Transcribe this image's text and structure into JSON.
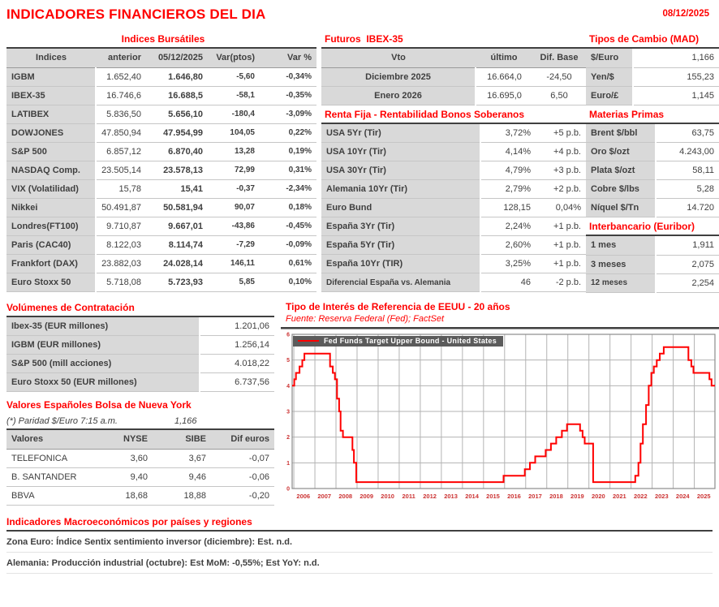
{
  "header": {
    "title": "INDICADORES FINANCIEROS DEL DIA",
    "date": "08/12/2025"
  },
  "indices": {
    "title": "Indices Bursátiles",
    "columns": [
      "Indices",
      "anterior",
      "05/12/2025",
      "Var(ptos)",
      "Var %"
    ],
    "rows": [
      [
        "IGBM",
        "1.652,40",
        "1.646,80",
        "-5,60",
        "-0,34%"
      ],
      [
        "IBEX-35",
        "16.746,6",
        "16.688,5",
        "-58,1",
        "-0,35%"
      ],
      [
        "LATIBEX",
        "5.836,50",
        "5.656,10",
        "-180,4",
        "-3,09%"
      ],
      [
        "DOWJONES",
        "47.850,94",
        "47.954,99",
        "104,05",
        "0,22%"
      ],
      [
        "S&P 500",
        "6.857,12",
        "6.870,40",
        "13,28",
        "0,19%"
      ],
      [
        "NASDAQ Comp.",
        "23.505,14",
        "23.578,13",
        "72,99",
        "0,31%"
      ],
      [
        "VIX (Volatilidad)",
        "15,78",
        "15,41",
        "-0,37",
        "-2,34%"
      ],
      [
        "Nikkei",
        "50.491,87",
        "50.581,94",
        "90,07",
        "0,18%"
      ],
      [
        "Londres(FT100)",
        "9.710,87",
        "9.667,01",
        "-43,86",
        "-0,45%"
      ],
      [
        "Paris (CAC40)",
        "8.122,03",
        "8.114,74",
        "-7,29",
        "-0,09%"
      ],
      [
        "Frankfort (DAX)",
        "23.882,03",
        "24.028,14",
        "146,11",
        "0,61%"
      ],
      [
        "Euro Stoxx 50",
        "5.718,08",
        "5.723,93",
        "5,85",
        "0,10%"
      ]
    ]
  },
  "futuros": {
    "title": "Futuros  IBEX-35",
    "columns": [
      "Vto",
      "último",
      "Dif. Base"
    ],
    "rows": [
      [
        "Diciembre 2025",
        "16.664,0",
        "-24,50"
      ],
      [
        "Enero 2026",
        "16.695,0",
        "6,50"
      ]
    ]
  },
  "renta_fija": {
    "title": "Renta Fija - Rentabilidad Bonos Soberanos",
    "rows": [
      [
        "USA 5Yr (Tir)",
        "3,72%",
        "+5 p.b."
      ],
      [
        "USA 10Yr (Tir)",
        "4,14%",
        "+4 p.b."
      ],
      [
        "USA 30Yr (Tir)",
        "4,79%",
        "+3 p.b."
      ],
      [
        "Alemania 10Yr (Tir)",
        "2,79%",
        "+2 p.b."
      ],
      [
        "Euro Bund",
        "128,15",
        "0,04%"
      ],
      [
        "España 3Yr (Tir)",
        "2,24%",
        "+1 p.b."
      ],
      [
        "España 5Yr (Tir)",
        "2,60%",
        "+1 p.b."
      ],
      [
        "España 10Yr (TIR)",
        "3,25%",
        "+1 p.b."
      ],
      [
        "Diferencial España vs. Alemania",
        "46",
        "-2 p.b."
      ]
    ]
  },
  "tipos_cambio": {
    "title": "Tipos de Cambio (MAD)",
    "rows": [
      [
        "$/Euro",
        "1,166"
      ],
      [
        "Yen/$",
        "155,23"
      ],
      [
        "Euro/£",
        "1,145"
      ]
    ]
  },
  "materias_primas": {
    "title": "Materias Primas",
    "rows": [
      [
        "Brent $/bbl",
        "63,75"
      ],
      [
        "Oro $/ozt",
        "4.243,00"
      ],
      [
        "Plata $/ozt",
        "58,11"
      ],
      [
        "Cobre $/lbs",
        "5,28"
      ],
      [
        "Níquel $/Tn",
        "14.720"
      ]
    ]
  },
  "interbancario": {
    "title": "Interbancario (Euribor)",
    "rows": [
      [
        "1 mes",
        "1,911"
      ],
      [
        "3 meses",
        "2,075"
      ],
      [
        "12 meses",
        "2,254"
      ]
    ]
  },
  "volumenes": {
    "title": "Volúmenes de Contratación",
    "rows": [
      [
        "Ibex-35 (EUR millones)",
        "1.201,06"
      ],
      [
        "IGBM (EUR millones)",
        "1.256,14"
      ],
      [
        "S&P 500 (mill acciones)",
        "4.018,22"
      ],
      [
        "Euro Stoxx 50 (EUR millones)",
        "6.737,56"
      ]
    ]
  },
  "valores_ny": {
    "title": "Valores Españoles Bolsa de Nueva York",
    "note": "(*) Paridad $/Euro 7:15 a.m.",
    "note_value": "1,166",
    "columns": [
      "Valores",
      "NYSE",
      "SIBE",
      "Dif euros"
    ],
    "rows": [
      [
        "TELEFONICA",
        "3,60",
        "3,67",
        "-0,07"
      ],
      [
        "B. SANTANDER",
        "9,40",
        "9,46",
        "-0,06"
      ],
      [
        "BBVA",
        "18,68",
        "18,88",
        "-0,20"
      ]
    ]
  },
  "chart_data": {
    "type": "line",
    "title": "Tipo de Interés de Referencia de EEUU - 20 años",
    "source": "Fuente: Reserva Federal (Fed); FactSet",
    "legend": "Fed Funds Target Upper Bound - United States",
    "line_color": "#ff0000",
    "tick_color": "#cc3333",
    "x_range": [
      2005.92,
      2025.98
    ],
    "y_range": [
      0,
      6
    ],
    "y_ticks": [
      0,
      1,
      2,
      3,
      4,
      5,
      6
    ],
    "x_tick_years": [
      2006,
      2007,
      2008,
      2009,
      2010,
      2011,
      2012,
      2013,
      2014,
      2015,
      2016,
      2017,
      2018,
      2019,
      2020,
      2021,
      2022,
      2023,
      2024,
      2025
    ],
    "grid": true,
    "legend_position": "top-left",
    "step_points": [
      [
        2005.92,
        4.0
      ],
      [
        2006.02,
        4.25
      ],
      [
        2006.1,
        4.5
      ],
      [
        2006.27,
        4.75
      ],
      [
        2006.4,
        5.0
      ],
      [
        2006.5,
        5.25
      ],
      [
        2007.72,
        4.75
      ],
      [
        2007.85,
        4.5
      ],
      [
        2007.95,
        4.25
      ],
      [
        2008.05,
        3.5
      ],
      [
        2008.15,
        3.0
      ],
      [
        2008.22,
        2.25
      ],
      [
        2008.33,
        2.0
      ],
      [
        2008.78,
        1.5
      ],
      [
        2008.85,
        1.0
      ],
      [
        2008.96,
        0.25
      ],
      [
        2015.95,
        0.5
      ],
      [
        2016.96,
        0.75
      ],
      [
        2017.2,
        1.0
      ],
      [
        2017.45,
        1.25
      ],
      [
        2017.95,
        1.5
      ],
      [
        2018.2,
        1.75
      ],
      [
        2018.45,
        2.0
      ],
      [
        2018.72,
        2.25
      ],
      [
        2018.96,
        2.5
      ],
      [
        2019.58,
        2.25
      ],
      [
        2019.7,
        2.0
      ],
      [
        2019.8,
        1.75
      ],
      [
        2020.2,
        0.25
      ],
      [
        2022.2,
        0.5
      ],
      [
        2022.35,
        1.0
      ],
      [
        2022.45,
        1.75
      ],
      [
        2022.56,
        2.5
      ],
      [
        2022.71,
        3.25
      ],
      [
        2022.84,
        4.0
      ],
      [
        2022.96,
        4.5
      ],
      [
        2023.08,
        4.75
      ],
      [
        2023.22,
        5.0
      ],
      [
        2023.36,
        5.25
      ],
      [
        2023.55,
        5.5
      ],
      [
        2024.72,
        5.0
      ],
      [
        2024.86,
        4.75
      ],
      [
        2024.96,
        4.5
      ],
      [
        2025.72,
        4.25
      ],
      [
        2025.82,
        4.0
      ],
      [
        2025.98,
        4.0
      ]
    ]
  },
  "macro": {
    "title": "Indicadores Macroeconómicos por países y regiones",
    "lines": [
      "Zona Euro: Índice Sentix sentimiento inversor (diciembre): Est. n.d.",
      "Alemania: Producción industrial (octubre): Est MoM: -0,55%; Est YoY: n.d."
    ]
  }
}
